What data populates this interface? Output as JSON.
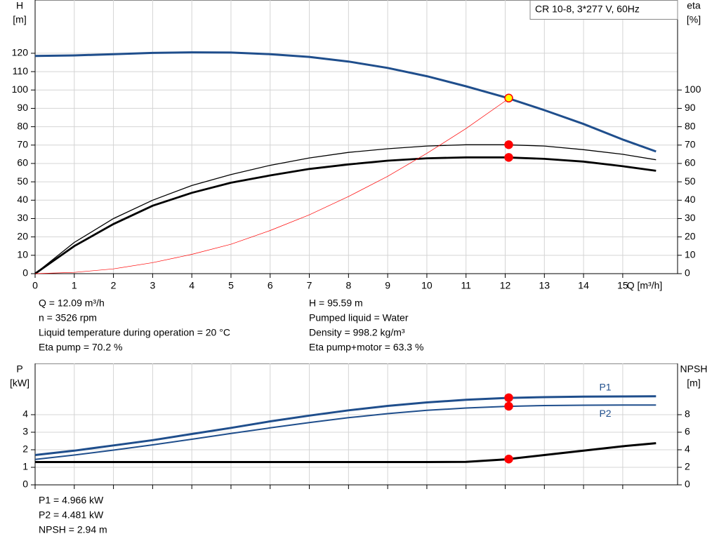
{
  "chart_data": [
    {
      "type": "line",
      "title": "CR 10-8, 3*277 V, 60Hz",
      "ylabel": [
        "H",
        "[m]"
      ],
      "y2label": [
        "eta",
        "[%]"
      ],
      "xlabel": "Q [m³/h]",
      "x": [
        0,
        1,
        2,
        3,
        4,
        5,
        6,
        7,
        8,
        9,
        10,
        11,
        12,
        13,
        14,
        15,
        15.85
      ],
      "xlim": [
        0,
        16.4
      ],
      "xticks": [
        0,
        1,
        2,
        3,
        4,
        5,
        6,
        7,
        8,
        9,
        10,
        11,
        12,
        13,
        14,
        15
      ],
      "ylim": [
        0,
        149
      ],
      "yticks": [
        0,
        10,
        20,
        30,
        40,
        50,
        60,
        70,
        80,
        90,
        100,
        110,
        120
      ],
      "y2lim": [
        0,
        149
      ],
      "y2ticks": [
        0,
        10,
        20,
        30,
        40,
        50,
        60,
        70,
        80,
        90,
        100
      ],
      "grid": true,
      "series": [
        {
          "color": "#1f4e8c",
          "values": [
            118.5,
            118.8,
            119.5,
            120.2,
            120.5,
            120.4,
            119.5,
            118,
            115.5,
            112,
            107.5,
            102,
            96,
            89,
            81.5,
            73,
            66.5
          ]
        },
        {
          "color": "#000000",
          "axis": "y2",
          "values": [
            0,
            17,
            30,
            40,
            48,
            54,
            59,
            63,
            66,
            68,
            69.5,
            70.2,
            70.2,
            69.5,
            67.5,
            65,
            62
          ]
        },
        {
          "color": "#000000",
          "axis": "y2",
          "values": [
            0,
            15,
            27,
            37,
            44,
            49.5,
            53.5,
            57,
            59.5,
            61.5,
            62.8,
            63.3,
            63.3,
            62.5,
            61,
            58.5,
            56
          ]
        },
        {
          "color": "#ff0000",
          "x": [
            0,
            1,
            2,
            3,
            4,
            5,
            6,
            7,
            8,
            9,
            10,
            11,
            12,
            12.09
          ],
          "values": [
            0,
            0.7,
            2.6,
            6,
            10.5,
            16,
            23.5,
            32,
            42,
            53,
            65.5,
            79,
            94,
            95.59
          ]
        }
      ],
      "points": [
        {
          "x": 12.09,
          "y": 95.59,
          "color": "#ffff00",
          "stroke": "#ff0000"
        },
        {
          "x": 12.09,
          "y": 70.2,
          "axis": "y2",
          "color": "#ff0000",
          "stroke": "#ff0000"
        },
        {
          "x": 12.09,
          "y": 63.3,
          "axis": "y2",
          "color": "#ff0000",
          "stroke": "#ff0000"
        }
      ],
      "info": [
        [
          "Q = 12.09 m³/h",
          "n = 3526 rpm",
          "Liquid temperature during operation = 20 °C",
          "Eta pump = 70.2 %"
        ],
        [
          "H = 95.59 m",
          "Pumped liquid = Water",
          "Density = 998.2 kg/m³",
          "Eta pump+motor = 63.3 %"
        ]
      ]
    },
    {
      "type": "line",
      "ylabel": [
        "P",
        "[kW]"
      ],
      "y2label": [
        "NPSH",
        "[m]"
      ],
      "x": [
        0,
        1,
        2,
        3,
        4,
        5,
        6,
        7,
        8,
        9,
        10,
        11,
        12,
        13,
        14,
        15,
        15.85
      ],
      "xlim": [
        0,
        16.4
      ],
      "xticks": [
        0,
        1,
        2,
        3,
        4,
        5,
        6,
        7,
        8,
        9,
        10,
        11,
        12,
        13,
        14,
        15
      ],
      "ylim": [
        0,
        6.92
      ],
      "yticks": [
        0,
        1,
        2,
        3,
        4
      ],
      "y2lim": [
        0,
        13.84
      ],
      "y2ticks": [
        0,
        2,
        4,
        6,
        8
      ],
      "grid": true,
      "series": [
        {
          "name": "P1",
          "color": "#1f4e8c",
          "values": [
            1.7,
            1.95,
            2.25,
            2.55,
            2.9,
            3.25,
            3.62,
            3.95,
            4.25,
            4.5,
            4.7,
            4.85,
            4.95,
            5.0,
            5.03,
            5.04,
            5.05
          ]
        },
        {
          "name": "P2",
          "color": "#1f4e8c",
          "values": [
            1.45,
            1.7,
            1.98,
            2.28,
            2.6,
            2.93,
            3.25,
            3.55,
            3.83,
            4.06,
            4.25,
            4.38,
            4.47,
            4.52,
            4.54,
            4.55,
            4.55
          ]
        },
        {
          "color": "#000000",
          "axis": "y2",
          "values": [
            2.6,
            2.6,
            2.6,
            2.6,
            2.6,
            2.6,
            2.6,
            2.6,
            2.6,
            2.6,
            2.6,
            2.62,
            2.9,
            3.4,
            3.9,
            4.4,
            4.75
          ]
        }
      ],
      "points": [
        {
          "x": 12.09,
          "y": 4.966,
          "color": "#ff0000",
          "stroke": "#ff0000"
        },
        {
          "x": 12.09,
          "y": 4.481,
          "color": "#ff0000",
          "stroke": "#ff0000"
        },
        {
          "x": 12.09,
          "y": 2.94,
          "axis": "y2",
          "color": "#ff0000",
          "stroke": "#ff0000"
        }
      ],
      "info": [
        [
          "P1 = 4.966 kW",
          "P2 = 4.481 kW",
          "NPSH = 2.94 m"
        ]
      ]
    }
  ]
}
